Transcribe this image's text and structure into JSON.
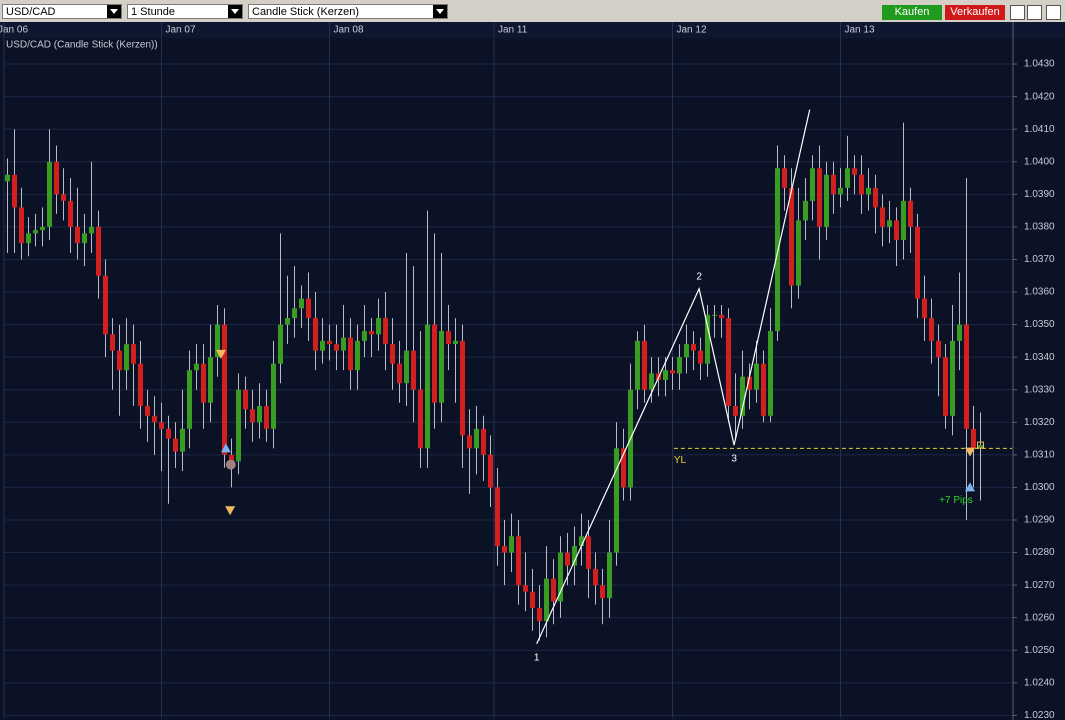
{
  "toolbar": {
    "symbol": "USD/CAD",
    "period": "1 Stunde",
    "chart_style": "Candle Stick (Kerzen)",
    "buy": "Kaufen",
    "sell": "Verkaufen"
  },
  "chart_data": {
    "type": "candlestick",
    "title": "USD/CAD (Candle Stick (Kerzen))",
    "up_color": "#3a9d23",
    "down_color": "#d21f1f",
    "wick_color": "#b8bcc8",
    "xlim": [
      -0.5,
      143.5
    ],
    "xticks": [
      {
        "value": -0.5,
        "label": "Jan 06"
      },
      {
        "value": 22,
        "label": "Jan 07"
      },
      {
        "value": 46,
        "label": "Jan 08"
      },
      {
        "value": 69.5,
        "label": "Jan 11"
      },
      {
        "value": 95,
        "label": "Jan 12"
      },
      {
        "value": 119,
        "label": "Jan 13"
      }
    ],
    "ylim": [
      1.02292,
      1.0438
    ],
    "yticks": [
      {
        "value": 1.023,
        "label": "1.0230"
      },
      {
        "value": 1.024,
        "label": "1.0240"
      },
      {
        "value": 1.025,
        "label": "1.0250"
      },
      {
        "value": 1.026,
        "label": "1.0260"
      },
      {
        "value": 1.027,
        "label": "1.0270"
      },
      {
        "value": 1.028,
        "label": "1.0280"
      },
      {
        "value": 1.029,
        "label": "1.0290"
      },
      {
        "value": 1.03,
        "label": "1.0300"
      },
      {
        "value": 1.031,
        "label": "1.0310"
      },
      {
        "value": 1.032,
        "label": "1.0320"
      },
      {
        "value": 1.033,
        "label": "1.0330"
      },
      {
        "value": 1.034,
        "label": "1.0340"
      },
      {
        "value": 1.035,
        "label": "1.0350"
      },
      {
        "value": 1.036,
        "label": "1.0360"
      },
      {
        "value": 1.037,
        "label": "1.0370"
      },
      {
        "value": 1.038,
        "label": "1.0380"
      },
      {
        "value": 1.039,
        "label": "1.0390"
      },
      {
        "value": 1.04,
        "label": "1.0400"
      },
      {
        "value": 1.041,
        "label": "1.0410"
      },
      {
        "value": 1.042,
        "label": "1.0420"
      },
      {
        "value": 1.043,
        "label": "1.0430"
      }
    ],
    "grid": true,
    "open": [
      1.0394,
      1.0396,
      1.0386,
      1.0375,
      1.0378,
      1.0379,
      1.038,
      1.04,
      1.039,
      1.0388,
      1.038,
      1.0375,
      1.0378,
      1.038,
      1.0365,
      1.0347,
      1.0342,
      1.0336,
      1.0344,
      1.0338,
      1.0325,
      1.0322,
      1.032,
      1.0318,
      1.0315,
      1.0311,
      1.0318,
      1.0336,
      1.0338,
      1.0326,
      1.034,
      1.035,
      1.031,
      1.0308,
      1.033,
      1.0324,
      1.032,
      1.0325,
      1.0318,
      1.0338,
      1.035,
      1.0352,
      1.0355,
      1.0358,
      1.0352,
      1.0342,
      1.0345,
      1.0344,
      1.0342,
      1.0346,
      1.0336,
      1.0345,
      1.0348,
      1.0347,
      1.0352,
      1.0344,
      1.0338,
      1.0332,
      1.0342,
      1.033,
      1.0312,
      1.035,
      1.0326,
      1.0348,
      1.0344,
      1.0345,
      1.0316,
      1.0312,
      1.0318,
      1.031,
      1.03,
      1.0282,
      1.028,
      1.0285,
      1.027,
      1.0268,
      1.0263,
      1.0259,
      1.0272,
      1.0265,
      1.028,
      1.0276,
      1.0282,
      1.0285,
      1.0275,
      1.027,
      1.0266,
      1.028,
      1.0312,
      1.03,
      1.033,
      1.0345,
      1.033,
      1.0335,
      1.0333,
      1.0336,
      1.0335,
      1.034,
      1.0344,
      1.0342,
      1.0338,
      1.0353,
      1.0353,
      1.0352,
      1.0325,
      1.0322,
      1.0334,
      1.033,
      1.0338,
      1.0322,
      1.0348,
      1.0398,
      1.0392,
      1.0362,
      1.0382,
      1.0388,
      1.0398,
      1.038,
      1.0396,
      1.039,
      1.0392,
      1.0398,
      1.0396,
      1.039,
      1.0392,
      1.0386,
      1.038,
      1.0382,
      1.0376,
      1.0388,
      1.038,
      1.0358,
      1.0352,
      1.0345,
      1.034,
      1.0322,
      1.0345,
      1.035,
      1.0318,
      1.0312
    ],
    "high": [
      1.0401,
      1.041,
      1.0392,
      1.0383,
      1.0384,
      1.0386,
      1.041,
      1.0405,
      1.0398,
      1.0395,
      1.0392,
      1.0384,
      1.04,
      1.0385,
      1.037,
      1.0352,
      1.035,
      1.0352,
      1.035,
      1.0345,
      1.033,
      1.0328,
      1.0326,
      1.0322,
      1.032,
      1.033,
      1.0342,
      1.0344,
      1.0344,
      1.035,
      1.0356,
      1.0355,
      1.0315,
      1.0335,
      1.0334,
      1.033,
      1.0332,
      1.033,
      1.0345,
      1.0378,
      1.0365,
      1.0368,
      1.0362,
      1.0366,
      1.036,
      1.0352,
      1.035,
      1.035,
      1.0356,
      1.0352,
      1.035,
      1.0356,
      1.0352,
      1.0358,
      1.036,
      1.0352,
      1.0345,
      1.0372,
      1.0368,
      1.0348,
      1.0385,
      1.0378,
      1.0372,
      1.0356,
      1.0352,
      1.035,
      1.0324,
      1.0325,
      1.0322,
      1.0316,
      1.0306,
      1.029,
      1.0292,
      1.029,
      1.028,
      1.0275,
      1.027,
      1.0282,
      1.0278,
      1.0285,
      1.0286,
      1.0288,
      1.0292,
      1.029,
      1.028,
      1.0275,
      1.029,
      1.032,
      1.0318,
      1.0338,
      1.0348,
      1.035,
      1.034,
      1.034,
      1.034,
      1.034,
      1.0344,
      1.035,
      1.0348,
      1.0346,
      1.0356,
      1.0356,
      1.0356,
      1.0355,
      1.0335,
      1.0342,
      1.0338,
      1.0345,
      1.0342,
      1.0355,
      1.0405,
      1.0402,
      1.0398,
      1.0392,
      1.0395,
      1.0402,
      1.0405,
      1.04,
      1.04,
      1.0398,
      1.0408,
      1.0402,
      1.0402,
      1.0398,
      1.0396,
      1.039,
      1.0388,
      1.0386,
      1.0412,
      1.0392,
      1.0384,
      1.0365,
      1.0358,
      1.035,
      1.0344,
      1.0356,
      1.0366,
      1.0395,
      1.0325,
      1.0323
    ],
    "low": [
      1.0372,
      1.0372,
      1.037,
      1.0371,
      1.0374,
      1.0374,
      1.0376,
      1.0384,
      1.0382,
      1.0372,
      1.037,
      1.0368,
      1.0372,
      1.0358,
      1.034,
      1.033,
      1.0322,
      1.033,
      1.0325,
      1.0318,
      1.0314,
      1.031,
      1.0305,
      1.0295,
      1.0306,
      1.0305,
      1.0312,
      1.033,
      1.0318,
      1.032,
      1.0334,
      1.0306,
      1.03,
      1.0304,
      1.0318,
      1.0314,
      1.0315,
      1.0314,
      1.0312,
      1.0332,
      1.0344,
      1.0346,
      1.0349,
      1.0345,
      1.0336,
      1.0338,
      1.0339,
      1.0336,
      1.0336,
      1.033,
      1.033,
      1.034,
      1.034,
      1.0342,
      1.0336,
      1.033,
      1.0326,
      1.0325,
      1.032,
      1.0306,
      1.0306,
      1.0318,
      1.032,
      1.0336,
      1.0326,
      1.0306,
      1.0298,
      1.0304,
      1.0302,
      1.0294,
      1.0276,
      1.027,
      1.0274,
      1.0264,
      1.0262,
      1.0256,
      1.0253,
      1.0254,
      1.0258,
      1.026,
      1.027,
      1.027,
      1.0276,
      1.0266,
      1.0264,
      1.0258,
      1.026,
      1.0276,
      1.0296,
      1.0296,
      1.0324,
      1.0326,
      1.0326,
      1.0328,
      1.0328,
      1.033,
      1.033,
      1.0335,
      1.0336,
      1.0333,
      1.0334,
      1.0346,
      1.0346,
      1.032,
      1.0315,
      1.0318,
      1.0324,
      1.0326,
      1.032,
      1.032,
      1.0345,
      1.0385,
      1.0355,
      1.0358,
      1.0376,
      1.0382,
      1.037,
      1.0376,
      1.0384,
      1.0386,
      1.0388,
      1.039,
      1.0384,
      1.0385,
      1.0378,
      1.0374,
      1.0375,
      1.0368,
      1.037,
      1.0372,
      1.0352,
      1.0345,
      1.0338,
      1.0328,
      1.0318,
      1.0316,
      1.0336,
      1.029,
      1.03,
      1.0296
    ],
    "close": [
      1.0396,
      1.0386,
      1.0375,
      1.0378,
      1.0379,
      1.038,
      1.04,
      1.039,
      1.0388,
      1.038,
      1.0375,
      1.0378,
      1.038,
      1.0365,
      1.0347,
      1.0342,
      1.0336,
      1.0344,
      1.0338,
      1.0325,
      1.0322,
      1.032,
      1.0318,
      1.0315,
      1.0311,
      1.0318,
      1.0336,
      1.0338,
      1.0326,
      1.034,
      1.035,
      1.031,
      1.0308,
      1.033,
      1.0324,
      1.032,
      1.0325,
      1.0318,
      1.0338,
      1.035,
      1.0352,
      1.0355,
      1.0358,
      1.0352,
      1.0342,
      1.0345,
      1.0344,
      1.0342,
      1.0346,
      1.0336,
      1.0345,
      1.0348,
      1.0347,
      1.0352,
      1.0344,
      1.0338,
      1.0332,
      1.0342,
      1.033,
      1.0312,
      1.035,
      1.0326,
      1.0348,
      1.0344,
      1.0345,
      1.0316,
      1.0312,
      1.0318,
      1.031,
      1.03,
      1.0282,
      1.028,
      1.0285,
      1.027,
      1.0268,
      1.0263,
      1.0259,
      1.0272,
      1.0265,
      1.028,
      1.0276,
      1.0282,
      1.0285,
      1.0275,
      1.027,
      1.0266,
      1.028,
      1.0312,
      1.03,
      1.033,
      1.0345,
      1.033,
      1.0335,
      1.0333,
      1.0336,
      1.0335,
      1.034,
      1.0344,
      1.0342,
      1.0338,
      1.0353,
      1.0353,
      1.0352,
      1.0325,
      1.0322,
      1.0334,
      1.033,
      1.0338,
      1.0322,
      1.0348,
      1.0398,
      1.0392,
      1.0362,
      1.0382,
      1.0388,
      1.0398,
      1.038,
      1.0396,
      1.039,
      1.0392,
      1.0398,
      1.0396,
      1.039,
      1.0392,
      1.0386,
      1.038,
      1.0382,
      1.0376,
      1.0388,
      1.038,
      1.0358,
      1.0352,
      1.0345,
      1.034,
      1.0322,
      1.0345,
      1.035,
      1.0318,
      1.0312,
      1.0313
    ],
    "zigzag": {
      "color": "#ffffff",
      "x": [
        75.6,
        98.8,
        103.8,
        114.6
      ],
      "values": [
        1.0252,
        1.0361,
        1.0313,
        1.0416
      ],
      "labels": [
        "1",
        "2",
        "3",
        null
      ]
    },
    "level": {
      "label": "YL",
      "value": 1.0312,
      "x_start": 95.2,
      "color": "#e8d52a"
    },
    "annotation": {
      "text": "+7 Pips",
      "x": 135.5,
      "value": 1.0296,
      "color": "#2ed12e"
    },
    "markers": [
      {
        "x": 30.5,
        "value": 1.0341,
        "shape": "down",
        "color": "#f0b860"
      },
      {
        "x": 31.2,
        "value": 1.0312,
        "shape": "up",
        "color": "#78b4f0"
      },
      {
        "x": 31.9,
        "value": 1.0307,
        "shape": "circle",
        "color": "#a08080"
      },
      {
        "x": 31.8,
        "value": 1.0293,
        "shape": "down",
        "color": "#f0b860"
      },
      {
        "x": 137.5,
        "value": 1.0311,
        "shape": "down",
        "color": "#f0b860"
      },
      {
        "x": 137.5,
        "value": 1.03,
        "shape": "up",
        "color": "#78b4f0"
      },
      {
        "x": 139,
        "value": 1.0313,
        "shape": "square",
        "color": "#f0b860"
      }
    ]
  }
}
